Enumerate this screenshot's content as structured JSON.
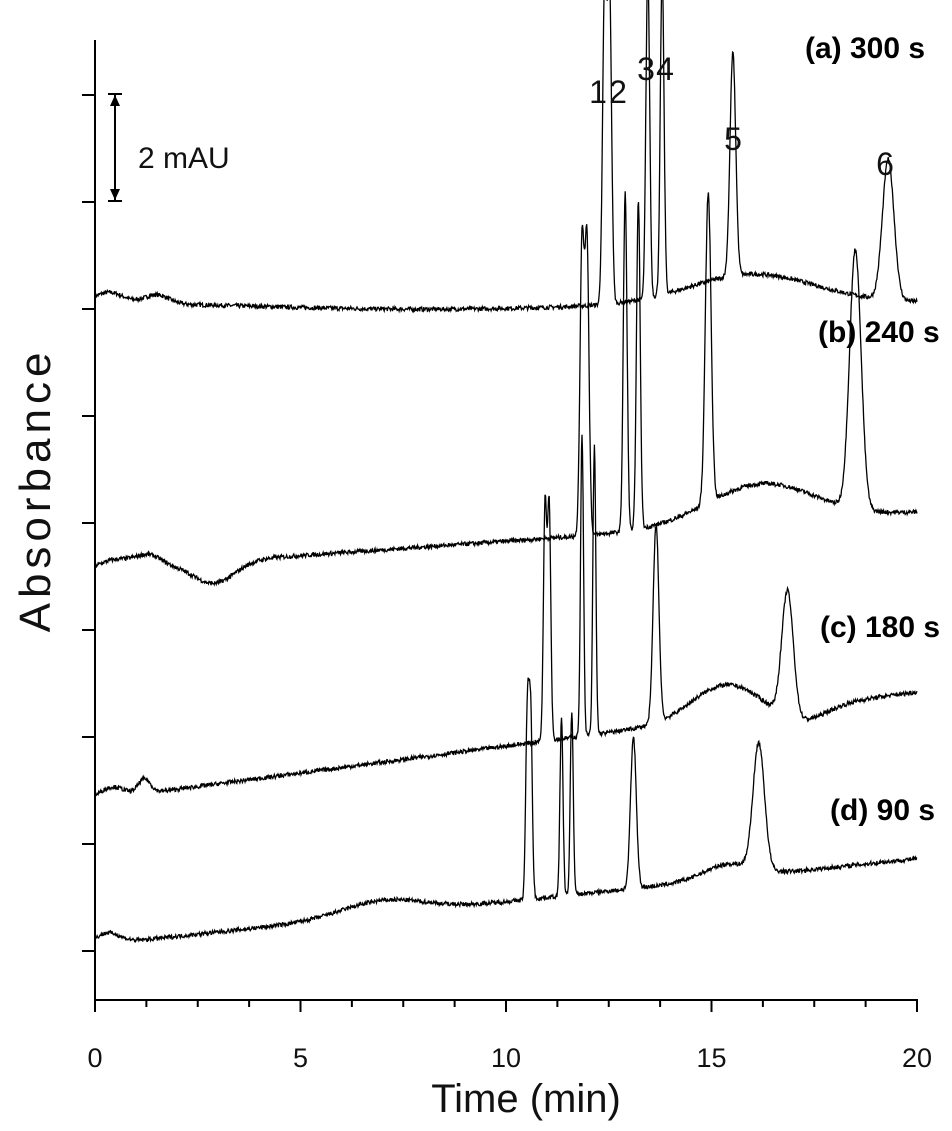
{
  "chart_data": {
    "type": "line",
    "xlabel": "Time (min)",
    "ylabel": "Absorbance",
    "xlim": [
      0,
      20
    ],
    "x_ticks": [
      "0",
      "5",
      "10",
      "15",
      "20"
    ],
    "y_ticks_count": 9,
    "grid": false,
    "scale_bar": {
      "label": "2 mAU",
      "value_mAU": 2
    },
    "peak_labels": [
      "1",
      "2",
      "3",
      "4",
      "5",
      "6"
    ],
    "series": [
      {
        "name": "(a) 300 s",
        "peaks": [
          {
            "id": "1",
            "t": 12.4,
            "h": 8.7
          },
          {
            "id": "2",
            "t": 12.52,
            "h": 8.6
          },
          {
            "id": "3",
            "t": 13.45,
            "h": 9.2
          },
          {
            "id": "4",
            "t": 13.8,
            "h": 9.0
          },
          {
            "id": "5",
            "t": 15.52,
            "h": 6.2
          },
          {
            "id": "6",
            "t": 19.3,
            "h": 3.9
          }
        ]
      },
      {
        "name": "(b) 240 s",
        "peaks": [
          {
            "id": "1",
            "t": 11.85,
            "h": 8.1
          },
          {
            "id": "2",
            "t": 11.97,
            "h": 8.1
          },
          {
            "id": "3",
            "t": 12.9,
            "h": 9.4
          },
          {
            "id": "4",
            "t": 13.22,
            "h": 9.1
          },
          {
            "id": "5",
            "t": 14.92,
            "h": 8.6
          },
          {
            "id": "6",
            "t": 18.5,
            "h": 7.2
          }
        ]
      },
      {
        "name": "(c) 180 s",
        "peaks": [
          {
            "id": "1",
            "t": 10.95,
            "h": 6.5
          },
          {
            "id": "2",
            "t": 11.05,
            "h": 6.5
          },
          {
            "id": "3",
            "t": 11.85,
            "h": 8.4
          },
          {
            "id": "4",
            "t": 12.15,
            "h": 8.0
          },
          {
            "id": "5",
            "t": 13.65,
            "h": 5.5
          },
          {
            "id": "6",
            "t": 16.85,
            "h": 3.5
          }
        ]
      },
      {
        "name": "(d) 90 s",
        "peaks": [
          {
            "id": "1",
            "t": 10.52,
            "h": 5.1
          },
          {
            "id": "2",
            "t": 10.6,
            "h": 5.0
          },
          {
            "id": "3",
            "t": 11.35,
            "h": 5.0
          },
          {
            "id": "4",
            "t": 11.6,
            "h": 5.1
          },
          {
            "id": "5",
            "t": 13.1,
            "h": 4.2
          },
          {
            "id": "6",
            "t": 16.15,
            "h": 3.5
          }
        ]
      }
    ]
  }
}
